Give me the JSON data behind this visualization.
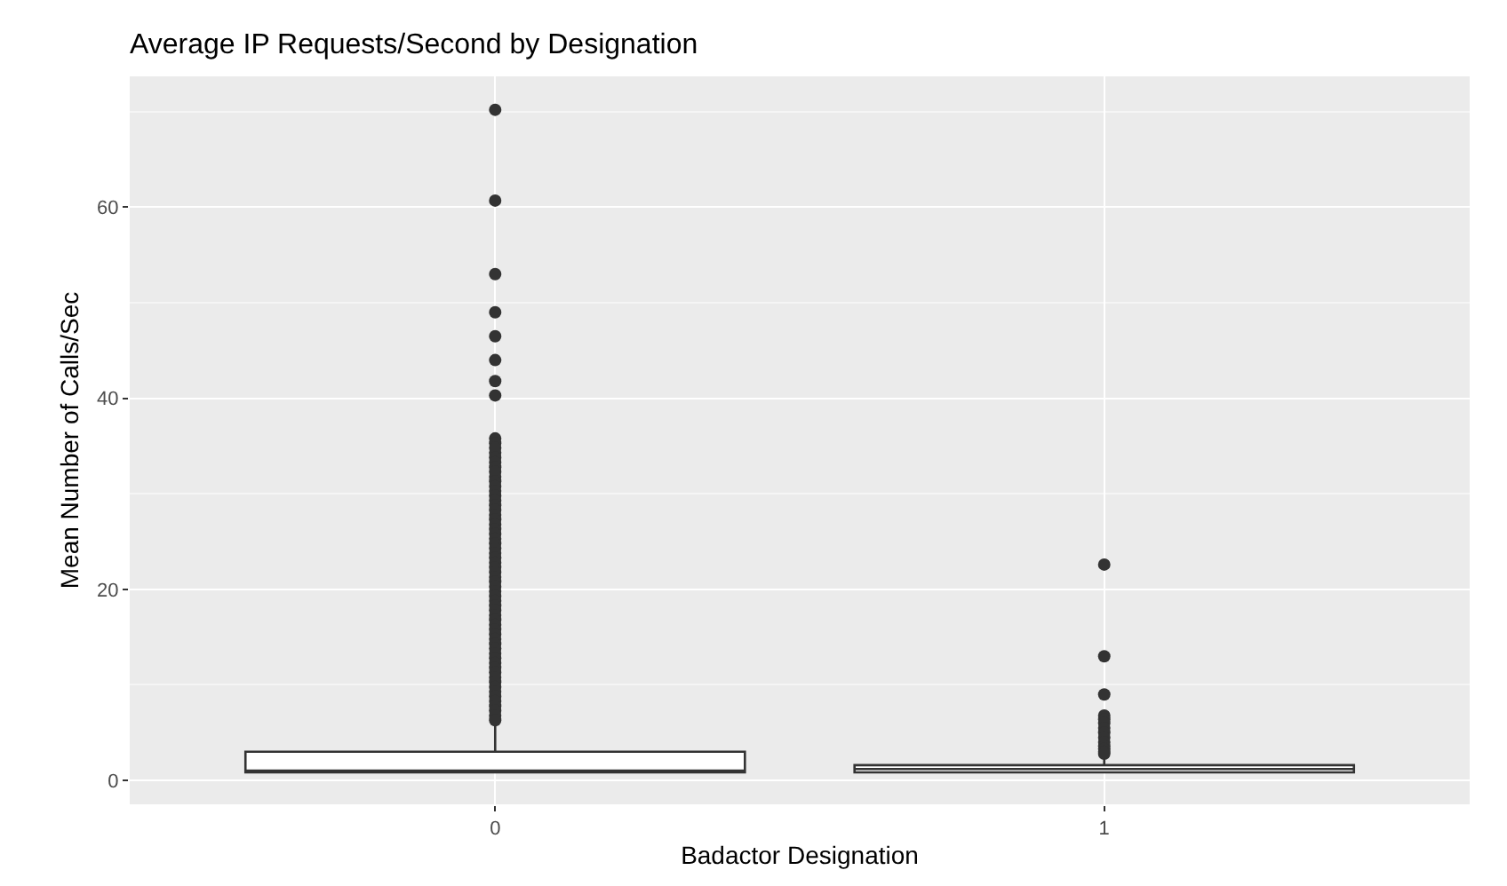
{
  "chart_data": {
    "type": "box",
    "title": "Average IP Requests/Second by Designation",
    "xlabel": "Badactor Designation",
    "ylabel": "Mean Number of Calls/Sec",
    "categories": [
      "0",
      "1"
    ],
    "boxes": [
      {
        "low": 0.85,
        "q1": 0.85,
        "median": 1.0,
        "q3": 3.0,
        "high": 6.0,
        "outliers": [
          70.2,
          60.7,
          53.0,
          49.0,
          46.5,
          44.0,
          41.8,
          40.3,
          35.8,
          35.3,
          34.8,
          34.3,
          33.8,
          33.3,
          32.8,
          32.3,
          31.8,
          31.3,
          30.8,
          30.3,
          29.8,
          29.3,
          28.8,
          28.3,
          27.8,
          27.3,
          26.8,
          26.3,
          25.8,
          25.3,
          24.8,
          24.3,
          23.8,
          23.3,
          22.8,
          22.3,
          21.8,
          21.3,
          20.8,
          20.3,
          19.8,
          19.3,
          18.8,
          18.3,
          17.8,
          17.3,
          16.8,
          16.3,
          15.8,
          15.3,
          14.8,
          14.3,
          13.8,
          13.3,
          12.8,
          12.3,
          11.8,
          11.3,
          10.8,
          10.3,
          9.8,
          9.3,
          8.8,
          8.3,
          7.8,
          7.3,
          6.8,
          6.3
        ]
      },
      {
        "low": 0.85,
        "q1": 0.85,
        "median": 1.2,
        "q3": 1.6,
        "high": 2.6,
        "outliers": [
          22.6,
          13.0,
          9.0,
          6.8,
          6.4,
          6.0,
          5.5,
          5.0,
          4.5,
          4.0,
          3.6,
          3.3,
          3.0,
          2.8
        ]
      }
    ],
    "color": "#333333",
    "ylim": [
      -2.5,
      73.7
    ],
    "yticks": [
      0,
      20,
      40,
      60
    ],
    "grid": true
  }
}
